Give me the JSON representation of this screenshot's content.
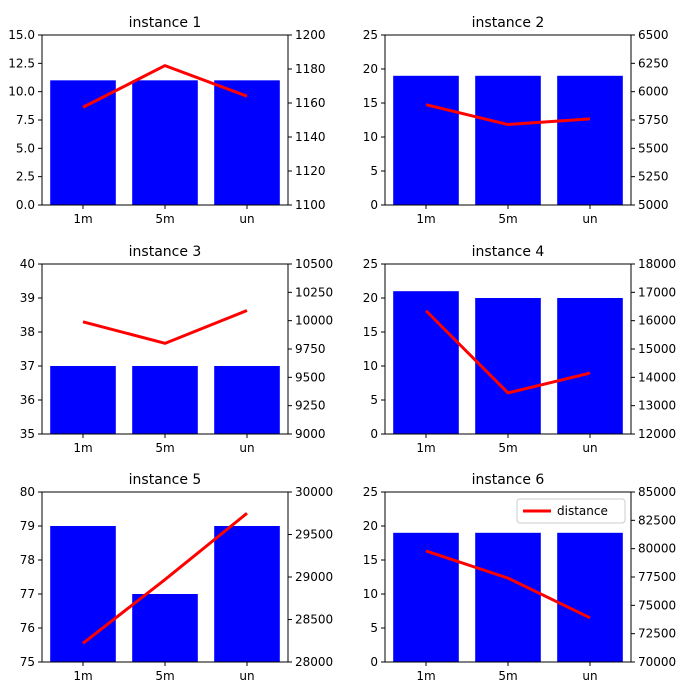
{
  "chart_data": [
    {
      "type": "bar",
      "title": "instance 1",
      "categories": [
        "1m",
        "5m",
        "un"
      ],
      "bar_values": [
        11,
        11,
        11
      ],
      "line_values": [
        1157.5,
        1182,
        1164
      ],
      "ylim_left": [
        0,
        15
      ],
      "yticks_left": [
        "0.0",
        "2.5",
        "5.0",
        "7.5",
        "10.0",
        "12.5",
        "15.0"
      ],
      "ylim_right": [
        1100,
        1200
      ],
      "yticks_right": [
        "1100",
        "1120",
        "1140",
        "1160",
        "1180",
        "1200"
      ]
    },
    {
      "type": "bar",
      "title": "instance 2",
      "categories": [
        "1m",
        "5m",
        "un"
      ],
      "bar_values": [
        19,
        19,
        19
      ],
      "line_values": [
        5885,
        5710,
        5760
      ],
      "ylim_left": [
        0,
        25
      ],
      "yticks_left": [
        "0",
        "5",
        "10",
        "15",
        "20",
        "25"
      ],
      "ylim_right": [
        5000,
        6500
      ],
      "yticks_right": [
        "5000",
        "5250",
        "5500",
        "5750",
        "6000",
        "6250",
        "6500"
      ]
    },
    {
      "type": "bar",
      "title": "instance 3",
      "categories": [
        "1m",
        "5m",
        "un"
      ],
      "bar_values": [
        37,
        37,
        37
      ],
      "line_values": [
        9990,
        9800,
        10090
      ],
      "ylim_left": [
        35,
        40
      ],
      "yticks_left": [
        "35",
        "36",
        "37",
        "38",
        "39",
        "40"
      ],
      "ylim_right": [
        9000,
        10500
      ],
      "yticks_right": [
        "9000",
        "9250",
        "9500",
        "9750",
        "10000",
        "10250",
        "10500"
      ]
    },
    {
      "type": "bar",
      "title": "instance 4",
      "categories": [
        "1m",
        "5m",
        "un"
      ],
      "bar_values": [
        21,
        20,
        20
      ],
      "line_values": [
        16350,
        13450,
        14150
      ],
      "ylim_left": [
        0,
        25
      ],
      "yticks_left": [
        "0",
        "5",
        "10",
        "15",
        "20",
        "25"
      ],
      "ylim_right": [
        12000,
        18000
      ],
      "yticks_right": [
        "12000",
        "13000",
        "14000",
        "15000",
        "16000",
        "17000",
        "18000"
      ]
    },
    {
      "type": "bar",
      "title": "instance 5",
      "categories": [
        "1m",
        "5m",
        "un"
      ],
      "bar_values": [
        79,
        77,
        79
      ],
      "line_values": [
        28220,
        28970,
        29750
      ],
      "ylim_left": [
        75,
        80
      ],
      "yticks_left": [
        "75",
        "76",
        "77",
        "78",
        "79",
        "80"
      ],
      "ylim_right": [
        28000,
        30000
      ],
      "yticks_right": [
        "28000",
        "28500",
        "29000",
        "29500",
        "30000"
      ]
    },
    {
      "type": "bar",
      "title": "instance 6",
      "categories": [
        "1m",
        "5m",
        "un"
      ],
      "bar_values": [
        19,
        19,
        19
      ],
      "line_values": [
        79800,
        77400,
        73900
      ],
      "ylim_left": [
        0,
        25
      ],
      "yticks_left": [
        "0",
        "5",
        "10",
        "15",
        "20",
        "25"
      ],
      "ylim_right": [
        70000,
        85000
      ],
      "yticks_right": [
        "70000",
        "72500",
        "75000",
        "77500",
        "80000",
        "82500",
        "85000"
      ],
      "legend": {
        "label": "distance",
        "placement": "top-right"
      }
    }
  ],
  "colors": {
    "bar": "#0000ff",
    "line": "#ff0000",
    "axis": "#000000",
    "background": "#ffffff"
  }
}
